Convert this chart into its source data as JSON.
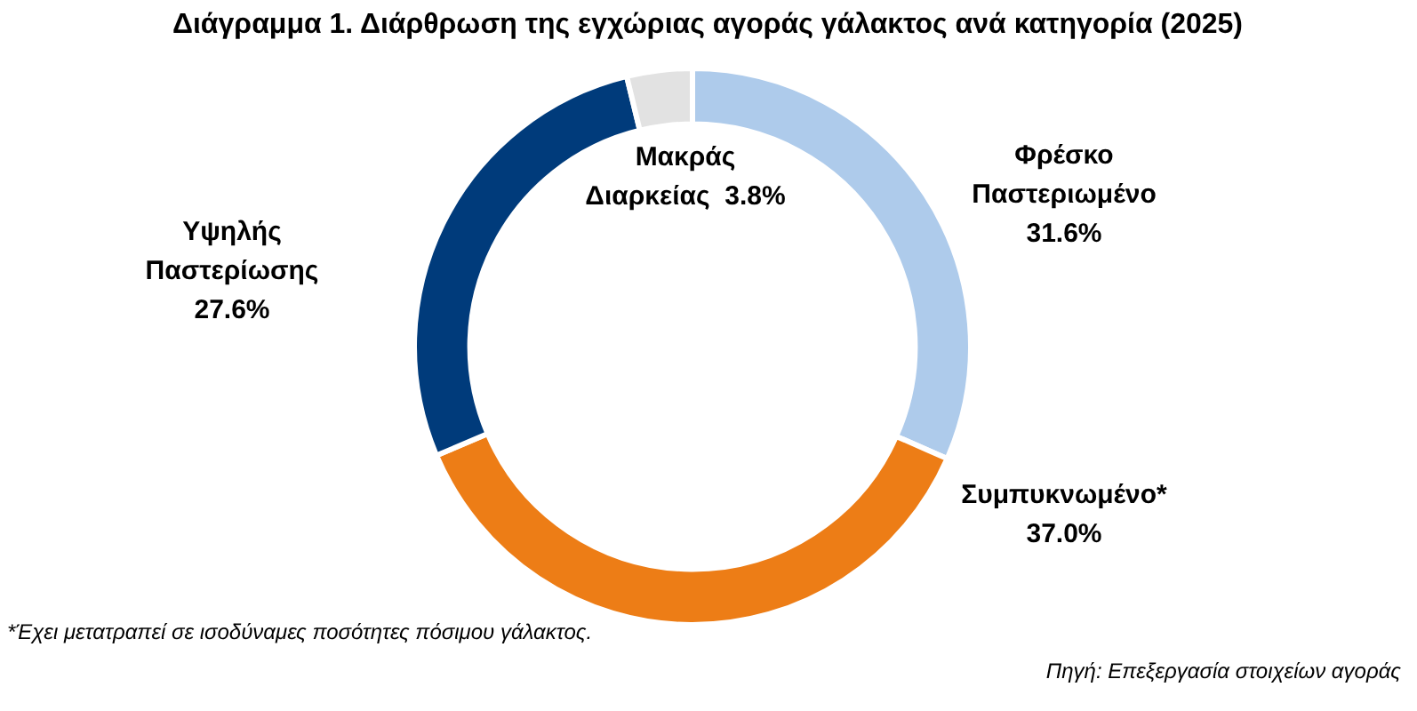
{
  "chart_data": {
    "type": "donut",
    "title": "Διάγραμμα 1. Διάρθρωση της εγχώριας αγοράς γάλακτος ανά κατηγορία (2025)",
    "categories": [
      "Φρέσκο Παστεριωμένο",
      "Συμπυκνωμένο*",
      "Υψηλής Παστερίωσης",
      "Μακράς Διαρκείας"
    ],
    "values": [
      31.6,
      37.0,
      27.6,
      3.8
    ],
    "value_labels": [
      "31.6%",
      "37.0%",
      "27.6%",
      "3.8%"
    ],
    "colors": [
      "#aecbeb",
      "#ed7d16",
      "#003b7b",
      "#e2e2e2"
    ],
    "annotations": [
      "*Έχει μετατραπεί σε ισοδύναμες ποσότητες πόσιμου γάλακτος.",
      "Πηγή: Επεξεργασία στοιχείων αγοράς"
    ],
    "legend": false
  }
}
